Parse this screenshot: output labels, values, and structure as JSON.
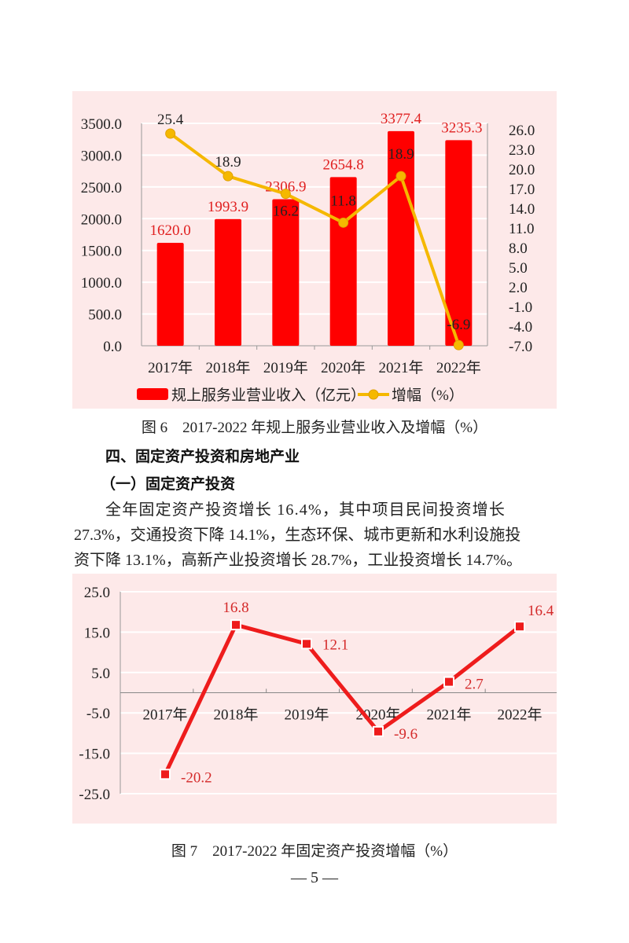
{
  "chart_data": [
    {
      "type": "bar+line",
      "title": "图6　2017-2022年规上服务业营业收入及增幅（%）",
      "categories": [
        "2017年",
        "2018年",
        "2019年",
        "2020年",
        "2021年",
        "2022年"
      ],
      "series": [
        {
          "name": "规上服务业营业收入（亿元）",
          "type": "bar",
          "axis": "left",
          "color": "#ff0000",
          "values": [
            1620.0,
            1993.9,
            2306.9,
            2654.8,
            3377.4,
            3235.3
          ],
          "labels": [
            "1620.0",
            "1993.9",
            "2306.9",
            "2654.8",
            "3377.4",
            "3235.3"
          ]
        },
        {
          "name": "增幅（%）",
          "type": "line",
          "axis": "right",
          "color": "#f5b800",
          "values": [
            25.4,
            18.9,
            16.2,
            11.8,
            18.9,
            -6.9
          ],
          "labels": [
            "25.4",
            "18.9",
            "16.2",
            "11.8",
            "18.9",
            "-6.9"
          ]
        }
      ],
      "y_left": {
        "ticks": [
          "0.0",
          "500.0",
          "1000.0",
          "1500.0",
          "2000.0",
          "2500.0",
          "3000.0",
          "3500.0"
        ],
        "ylim": [
          0,
          3500
        ]
      },
      "y_right": {
        "ticks": [
          "-7.0",
          "-4.0",
          "-1.0",
          "2.0",
          "5.0",
          "8.0",
          "11.0",
          "14.0",
          "17.0",
          "20.0",
          "23.0",
          "26.0"
        ],
        "ylim": [
          -7,
          26
        ]
      },
      "grid": true,
      "legend_position": "bottom",
      "background": "#fde9e9"
    },
    {
      "type": "line",
      "title": "图7　2017-2022年固定资产投资增幅（%）",
      "categories": [
        "2017年",
        "2018年",
        "2019年",
        "2020年",
        "2021年",
        "2022年"
      ],
      "series": [
        {
          "name": "固定资产投资增幅",
          "color": "#ee1c1c",
          "values": [
            -20.2,
            16.8,
            12.1,
            -9.6,
            2.7,
            16.4
          ],
          "labels": [
            "-20.2",
            "16.8",
            "12.1",
            "-9.6",
            "2.7",
            "16.4"
          ]
        }
      ],
      "y": {
        "ticks": [
          "25.0",
          "15.0",
          "5.0",
          "-5.0",
          "-15.0",
          "-25.0"
        ],
        "ylim": [
          -25,
          25
        ]
      },
      "grid": true,
      "background": "#fde9e9"
    }
  ],
  "page": {
    "figure6_caption": "图 6　2017-2022 年规上服务业营业收入及增幅（%）",
    "section_heading": "四、固定资产投资和房地产业",
    "subsection_heading": "（一）固定资产投资",
    "paragraph_lines": [
      "全年固定资产投资增长 16.4%，其中项目民间投资增长",
      "27.3%，交通投资下降 14.1%，生态环保、城市更新和水利设施投",
      "资下降 13.1%，高新产业投资增长 28.7%，工业投资增长 14.7%。"
    ],
    "figure7_caption": "图 7　2017-2022 年固定资产投资增幅（%）",
    "page_number": "— 5 —"
  }
}
